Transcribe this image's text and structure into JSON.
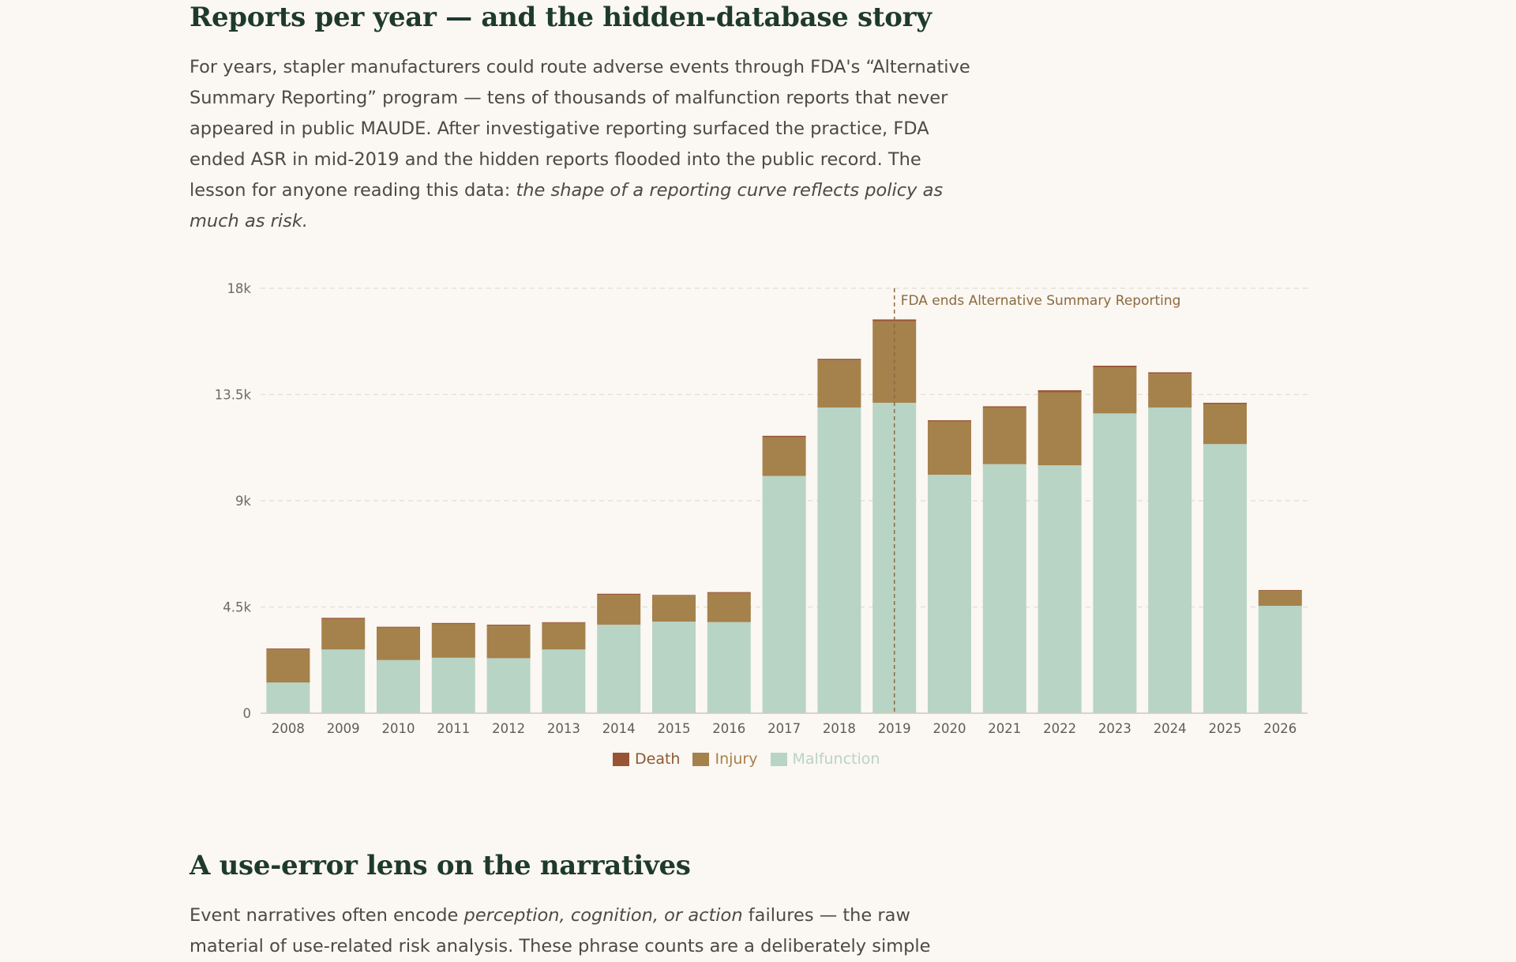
{
  "section_title": "Reports per year — and the hidden-database story",
  "intro": {
    "text": "For years, stapler manufacturers could route adverse events through FDA's “Alternative Summary Reporting” program — tens of thousands of malfunction reports that never appeared in public MAUDE. After investigative reporting surfaced the practice, FDA ended ASR in mid-2019 and the hidden reports flooded into the public record. The lesson for anyone reading this data: ",
    "emphasis": "the shape of a reporting curve reflects policy as much as risk."
  },
  "chart_data": {
    "type": "bar",
    "stacked": true,
    "categories": [
      "2008",
      "2009",
      "2010",
      "2011",
      "2012",
      "2013",
      "2014",
      "2015",
      "2016",
      "2017",
      "2018",
      "2019",
      "2020",
      "2021",
      "2022",
      "2023",
      "2024",
      "2025",
      "2026"
    ],
    "series": [
      {
        "name": "Malfunction",
        "color": "#b8d4c5",
        "values": [
          1300,
          2700,
          2250,
          2350,
          2330,
          2700,
          3750,
          3880,
          3860,
          10050,
          12950,
          13150,
          10100,
          10550,
          10500,
          12700,
          12950,
          11400,
          4550
        ]
      },
      {
        "name": "Injury",
        "color": "#a5814c",
        "values": [
          1400,
          1300,
          1380,
          1430,
          1380,
          1120,
          1270,
          1100,
          1230,
          1640,
          2000,
          3450,
          2260,
          2400,
          3100,
          1950,
          1430,
          1700,
          650
        ]
      },
      {
        "name": "Death",
        "color": "#985434",
        "values": [
          40,
          40,
          30,
          40,
          40,
          35,
          40,
          30,
          40,
          60,
          60,
          80,
          50,
          50,
          80,
          70,
          60,
          50,
          20
        ]
      }
    ],
    "legend_order": [
      "Death",
      "Injury",
      "Malfunction"
    ],
    "ylim": [
      0,
      18000
    ],
    "yticks": [
      {
        "value": 0,
        "label": "0"
      },
      {
        "value": 4500,
        "label": "4.5k"
      },
      {
        "value": 9000,
        "label": "9k"
      },
      {
        "value": 13500,
        "label": "13.5k"
      },
      {
        "value": 18000,
        "label": "18k"
      }
    ],
    "grid": true,
    "legend_position": "bottom-center",
    "annotation": {
      "x": "2019",
      "text": "FDA ends Alternative Summary Reporting",
      "color": "#8c6a3e"
    }
  },
  "section2_title": "A use-error lens on the narratives",
  "intro2": {
    "pre": "Event narratives often encode ",
    "emphasis": "perception, cognition, or action",
    "post": " failures — the raw material of use-related risk analysis. These phrase counts are a deliberately simple"
  }
}
